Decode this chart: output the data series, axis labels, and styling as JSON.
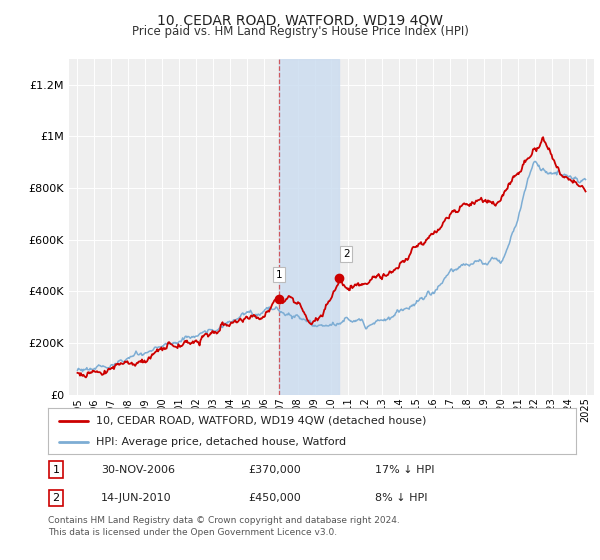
{
  "title": "10, CEDAR ROAD, WATFORD, WD19 4QW",
  "subtitle": "Price paid vs. HM Land Registry's House Price Index (HPI)",
  "ylabel_ticks": [
    "£0",
    "£200K",
    "£400K",
    "£600K",
    "£800K",
    "£1M",
    "£1.2M"
  ],
  "ytick_values": [
    0,
    200000,
    400000,
    600000,
    800000,
    1000000,
    1200000
  ],
  "ylim": [
    0,
    1300000
  ],
  "xlim_start": 1994.5,
  "xlim_end": 2025.5,
  "sale1_date": 2006.92,
  "sale1_price": 370000,
  "sale1_label": "1",
  "sale2_date": 2010.46,
  "sale2_price": 450000,
  "sale2_label": "2",
  "legend_line1": "10, CEDAR ROAD, WATFORD, WD19 4QW (detached house)",
  "legend_line2": "HPI: Average price, detached house, Watford",
  "table_row1": [
    "1",
    "30-NOV-2006",
    "£370,000",
    "17% ↓ HPI"
  ],
  "table_row2": [
    "2",
    "14-JUN-2010",
    "£450,000",
    "8% ↓ HPI"
  ],
  "footnote": "Contains HM Land Registry data © Crown copyright and database right 2024.\nThis data is licensed under the Open Government Licence v3.0.",
  "color_red": "#cc0000",
  "color_blue": "#7dadd4",
  "color_shade": "#ccddf0",
  "background_plot": "#efefef",
  "background_fig": "#ffffff"
}
